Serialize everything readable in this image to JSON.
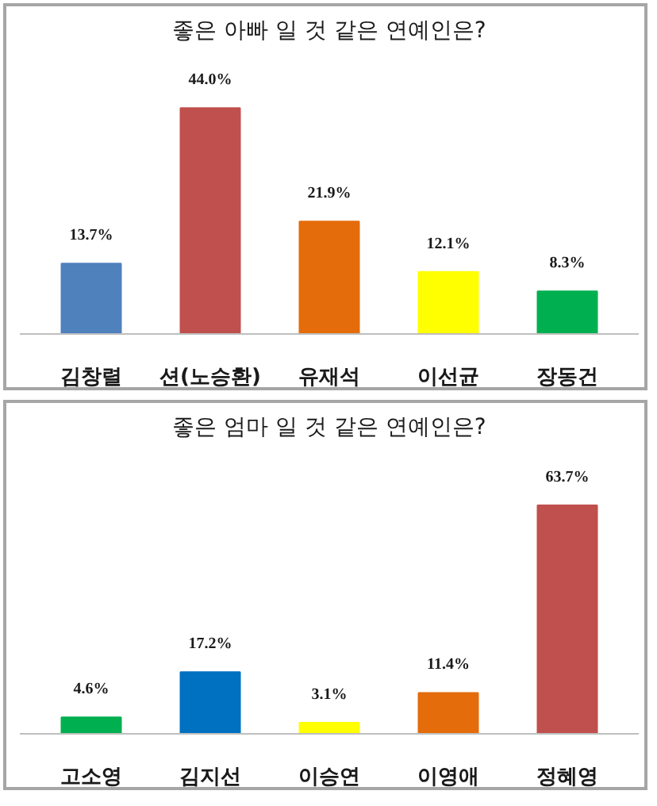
{
  "chart_data": [
    {
      "type": "bar",
      "title": "좋은 아빠 일 것 같은 연예인은?",
      "categories": [
        "김창렬",
        "션(노승환)",
        "유재석",
        "이선균",
        "장동건"
      ],
      "values": [
        13.7,
        44.0,
        21.9,
        12.1,
        8.3
      ],
      "value_labels": [
        "13.7%",
        "44.0%",
        "21.9%",
        "12.1%",
        "8.3%"
      ],
      "colors": [
        "#4f81bd",
        "#c0504d",
        "#e46c0a",
        "#ffff00",
        "#00b050"
      ]
    },
    {
      "type": "bar",
      "title": "좋은 엄마 일 것 같은 연예인은?",
      "categories": [
        "고소영",
        "김지선",
        "이승연",
        "이영애",
        "정혜영"
      ],
      "values": [
        4.6,
        17.2,
        3.1,
        11.4,
        63.7
      ],
      "value_labels": [
        "4.6%",
        "17.2%",
        "3.1%",
        "11.4%",
        "63.7%"
      ],
      "colors": [
        "#00b050",
        "#0070c0",
        "#ffff00",
        "#e46c0a",
        "#c0504d"
      ]
    }
  ]
}
